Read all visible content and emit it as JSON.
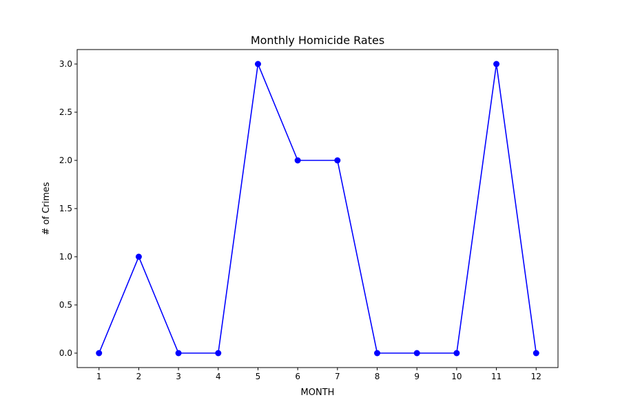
{
  "chart_data": {
    "type": "line",
    "title": "Monthly Homicide Rates",
    "xlabel": "MONTH",
    "ylabel": "# of Crimes",
    "x": [
      1,
      2,
      3,
      4,
      5,
      6,
      7,
      8,
      9,
      10,
      11,
      12
    ],
    "x_tick_labels": [
      "1",
      "2",
      "3",
      "4",
      "5",
      "6",
      "7",
      "8",
      "9",
      "10",
      "11",
      "12"
    ],
    "y_ticks": [
      0.0,
      0.5,
      1.0,
      1.5,
      2.0,
      2.5,
      3.0
    ],
    "y_tick_labels": [
      "0.0",
      "0.5",
      "1.0",
      "1.5",
      "2.0",
      "2.5",
      "3.0"
    ],
    "xlim": [
      0.45,
      12.55
    ],
    "ylim": [
      -0.15,
      3.15
    ],
    "grid": false,
    "series": [
      {
        "values": [
          0,
          1,
          0,
          0,
          3,
          2,
          2,
          0,
          0,
          0,
          3,
          0
        ],
        "color": "#0000ff",
        "marker": "circle"
      }
    ]
  }
}
